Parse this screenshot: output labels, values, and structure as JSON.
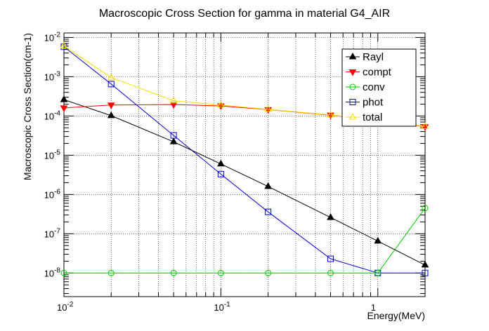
{
  "chart_data": {
    "type": "line",
    "title": "Macroscopic Cross Section for gamma in material G4_AIR",
    "xlabel": "Energy(MeV)",
    "ylabel": "Macroscopic Cross Section(cm-1)",
    "xscale": "log",
    "yscale": "log",
    "xlim": [
      0.01,
      2
    ],
    "ylim": [
      2.5e-09,
      0.013
    ],
    "grid": true,
    "legend_position": "top-right",
    "x_ticks": [
      {
        "base": "10",
        "exp": "-2"
      },
      {
        "base": "10",
        "exp": "-1"
      },
      {
        "base": "1",
        "exp": ""
      }
    ],
    "y_ticks": [
      {
        "base": "10",
        "exp": "-2"
      },
      {
        "base": "10",
        "exp": "-3"
      },
      {
        "base": "10",
        "exp": "-4"
      },
      {
        "base": "10",
        "exp": "-5"
      },
      {
        "base": "10",
        "exp": "-6"
      },
      {
        "base": "10",
        "exp": "-7"
      },
      {
        "base": "10",
        "exp": "-8"
      }
    ],
    "x": [
      0.01,
      0.02,
      0.05,
      0.1,
      0.2,
      0.5,
      1,
      2
    ],
    "series": [
      {
        "name": "Rayl",
        "color": "#000000",
        "marker": "triangle-up-filled",
        "values": [
          0.00026,
          0.000102,
          2.2e-05,
          6e-06,
          1.6e-06,
          2.6e-07,
          6.5e-08,
          1.6e-08
        ]
      },
      {
        "name": "compt",
        "color": "#ff0000",
        "marker": "triangle-down-filled",
        "values": [
          0.00016,
          0.00019,
          0.000195,
          0.00018,
          0.000145,
          0.000105,
          7.6e-05,
          5.3e-05
        ]
      },
      {
        "name": "conv",
        "color": "#00cc00",
        "marker": "circle-open",
        "values": [
          1e-08,
          1e-08,
          1e-08,
          1e-08,
          1e-08,
          1e-08,
          1e-08,
          4.5e-07
        ]
      },
      {
        "name": "phot",
        "color": "#0000cc",
        "marker": "square-open",
        "values": [
          0.0058,
          0.00065,
          3.2e-05,
          3.3e-06,
          3.6e-07,
          2.3e-08,
          1e-08,
          1e-08
        ]
      },
      {
        "name": "total",
        "color": "#ffdd00",
        "marker": "triangle-up-open",
        "values": [
          0.0061,
          0.00095,
          0.000245,
          0.00019,
          0.000147,
          0.000106,
          7.7e-05,
          5.4e-05
        ]
      }
    ]
  }
}
